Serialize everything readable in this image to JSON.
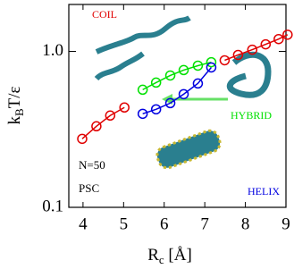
{
  "chart_data": {
    "type": "line",
    "x_label": {
      "main": "R",
      "sub": "c",
      "rest": " [Å]"
    },
    "y_label": {
      "main": "k",
      "sub": "B",
      "rest": "T/ε"
    },
    "xlim": [
      3.65,
      9
    ],
    "ylim": [
      0.1,
      2
    ],
    "y_log": true,
    "xticks": [
      4,
      5,
      6,
      7,
      8,
      9
    ],
    "yticks": [
      0.1,
      {
        "value": 1,
        "label": "1.0"
      }
    ],
    "series": [
      {
        "name": "COIL",
        "color": "#e00000",
        "x": [
          3.98,
          4.33,
          4.67,
          5.02,
          null,
          7.49,
          7.82,
          8.17,
          8.5,
          8.82,
          9.04
        ],
        "values": [
          0.275,
          0.331,
          0.388,
          0.437,
          null,
          0.877,
          0.949,
          1.026,
          1.11,
          1.2,
          1.28
        ]
      },
      {
        "name": "HYBRID",
        "color": "#00e000",
        "x": [
          5.47,
          5.8,
          6.15,
          6.48,
          6.83,
          7.16
        ],
        "values": [
          0.568,
          0.631,
          0.701,
          0.759,
          0.81,
          0.853
        ]
      },
      {
        "name": "HELIX",
        "color": "#0000e0",
        "x": [
          5.47,
          5.8,
          6.15,
          6.48,
          6.83,
          7.16
        ],
        "values": [
          0.398,
          0.425,
          0.466,
          0.532,
          0.623,
          0.789
        ]
      }
    ],
    "annotations": [
      "N=50",
      "PSC"
    ]
  }
}
